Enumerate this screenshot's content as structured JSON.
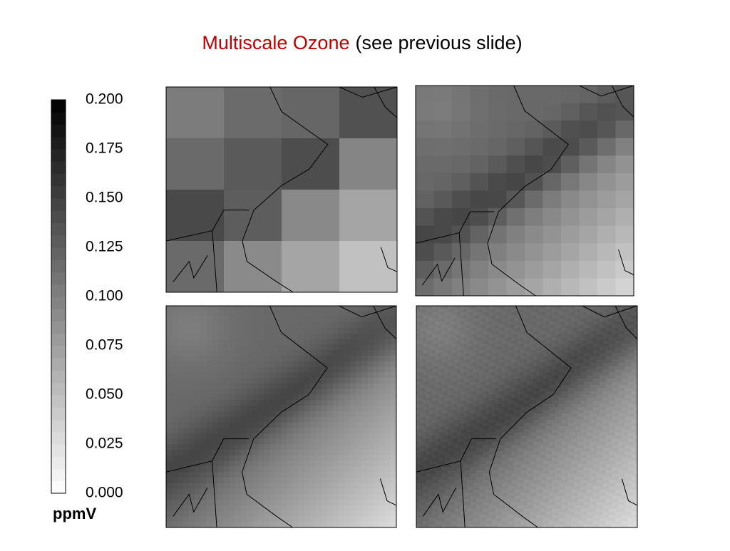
{
  "title": {
    "highlight": "Multiscale Ozone",
    "rest": "(see previous slide)"
  },
  "colorbar": {
    "clim": [
      0,
      0.2
    ],
    "unit": "ppmV",
    "ticks": [
      {
        "value": 0.2,
        "label": "0.200"
      },
      {
        "value": 0.175,
        "label": "0.175"
      },
      {
        "value": 0.15,
        "label": "0.150"
      },
      {
        "value": 0.125,
        "label": "0.125"
      },
      {
        "value": 0.1,
        "label": "0.100"
      },
      {
        "value": 0.075,
        "label": "0.075"
      },
      {
        "value": 0.05,
        "label": "0.050"
      },
      {
        "value": 0.025,
        "label": "0.025"
      },
      {
        "value": 0,
        "label": "0.000"
      }
    ]
  }
}
